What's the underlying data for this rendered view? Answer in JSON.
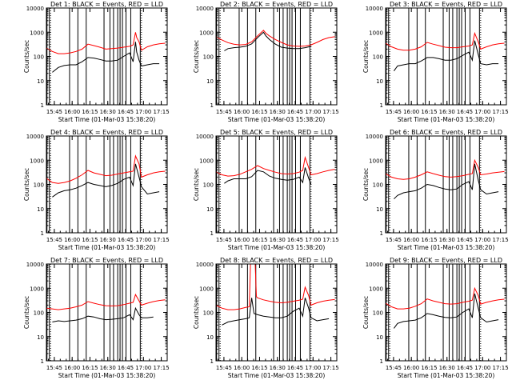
{
  "figure": {
    "x_tick_labels": [
      "15:45",
      "16:00",
      "16:15",
      "16:30",
      "16:45",
      "17:00",
      "17:15"
    ],
    "y_tick_labels": [
      "1",
      "10",
      "100",
      "1000",
      "10000"
    ],
    "ylabel": "Counts/sec",
    "xlabel": "Start Time (01-Mar-03 15:38:20)",
    "event_line_times_min": [
      -1.5,
      0.5,
      2.5,
      19.5,
      26.5,
      33.5,
      48.5,
      53.5,
      56.5,
      60.0,
      62.0,
      64.0,
      67.0,
      71.0,
      79.0
    ],
    "colors": {
      "events": "#000000",
      "lld": "#ff0000",
      "axes": "#000000",
      "background": "#ffffff"
    }
  },
  "chart_data": [
    {
      "type": "line",
      "title": "Det 1: BLACK = Events, RED = LLD",
      "xlim": [
        "15:38:20",
        "17:20"
      ],
      "ylim": [
        1,
        10000
      ],
      "yscale": "log",
      "series": [
        {
          "color": "#000000",
          "x_min": [
            5,
            10,
            15,
            20,
            25,
            30,
            35,
            40,
            45,
            50,
            55,
            60,
            65,
            70,
            73,
            75,
            76,
            78,
            80,
            85,
            90,
            95
          ],
          "y": [
            22,
            35,
            42,
            45,
            45,
            60,
            90,
            85,
            75,
            65,
            65,
            70,
            100,
            140,
            60,
            400,
            150,
            70,
            40,
            45,
            50,
            50
          ]
        },
        {
          "color": "#ff0000",
          "x_min": [
            0,
            5,
            10,
            15,
            20,
            25,
            30,
            35,
            40,
            45,
            50,
            55,
            60,
            65,
            70,
            73,
            75,
            76,
            78,
            80,
            85,
            90,
            95,
            100
          ],
          "y": [
            220,
            160,
            130,
            130,
            140,
            160,
            200,
            320,
            280,
            240,
            200,
            210,
            220,
            240,
            260,
            300,
            1000,
            600,
            400,
            180,
            250,
            300,
            330,
            350
          ]
        }
      ]
    },
    {
      "type": "line",
      "title": "Det 2: BLACK = Events, RED = LLD",
      "xlim": [
        "15:38:20",
        "17:20"
      ],
      "ylim": [
        1,
        10000
      ],
      "yscale": "log",
      "series": [
        {
          "color": "#000000",
          "x_min": [
            7,
            10,
            15,
            20,
            25,
            30,
            35,
            40,
            42,
            45,
            50,
            55,
            60,
            65,
            70,
            75,
            80
          ],
          "y": [
            170,
            210,
            230,
            240,
            260,
            330,
            600,
            1000,
            700,
            500,
            320,
            240,
            220,
            210,
            210,
            230,
            260
          ]
        },
        {
          "color": "#ff0000",
          "x_min": [
            0,
            5,
            10,
            15,
            20,
            25,
            30,
            35,
            40,
            42,
            45,
            50,
            55,
            60,
            65,
            70,
            75,
            80,
            85,
            90,
            95,
            100
          ],
          "y": [
            650,
            480,
            370,
            320,
            300,
            310,
            400,
            700,
            1200,
            900,
            700,
            500,
            380,
            300,
            270,
            260,
            270,
            300,
            380,
            500,
            600,
            650
          ]
        }
      ]
    },
    {
      "type": "line",
      "title": "Det 3: BLACK = Events, RED = LLD",
      "xlim": [
        "15:38:20",
        "17:20"
      ],
      "ylim": [
        1,
        10000
      ],
      "yscale": "log",
      "series": [
        {
          "color": "#000000",
          "x_min": [
            7,
            10,
            15,
            20,
            25,
            30,
            35,
            40,
            45,
            50,
            55,
            60,
            65,
            70,
            73,
            75,
            78,
            80,
            85,
            90,
            95
          ],
          "y": [
            25,
            40,
            45,
            50,
            50,
            65,
            90,
            90,
            80,
            70,
            70,
            80,
            110,
            150,
            70,
            450,
            120,
            50,
            45,
            50,
            50
          ]
        },
        {
          "color": "#ff0000",
          "x_min": [
            0,
            5,
            10,
            15,
            20,
            25,
            30,
            35,
            40,
            45,
            50,
            55,
            60,
            65,
            70,
            73,
            75,
            78,
            80,
            85,
            90,
            95,
            100
          ],
          "y": [
            350,
            250,
            200,
            180,
            180,
            200,
            250,
            380,
            320,
            280,
            240,
            230,
            230,
            250,
            270,
            300,
            900,
            400,
            200,
            250,
            300,
            330,
            350
          ]
        }
      ]
    },
    {
      "type": "line",
      "title": "Det 4: BLACK = Events, RED = LLD",
      "xlim": [
        "15:38:20",
        "17:20"
      ],
      "ylim": [
        1,
        10000
      ],
      "yscale": "log",
      "series": [
        {
          "color": "#000000",
          "x_min": [
            5,
            10,
            15,
            20,
            25,
            30,
            35,
            40,
            45,
            50,
            55,
            60,
            65,
            70,
            73,
            75,
            78,
            80,
            85,
            90,
            95
          ],
          "y": [
            30,
            45,
            55,
            60,
            70,
            90,
            120,
            100,
            90,
            80,
            90,
            110,
            160,
            200,
            90,
            700,
            200,
            80,
            40,
            45,
            50
          ]
        },
        {
          "color": "#ff0000",
          "x_min": [
            0,
            5,
            10,
            15,
            20,
            25,
            30,
            35,
            40,
            45,
            50,
            55,
            60,
            65,
            70,
            73,
            75,
            78,
            80,
            85,
            90,
            95,
            100
          ],
          "y": [
            180,
            120,
            110,
            120,
            140,
            180,
            250,
            380,
            300,
            260,
            230,
            240,
            270,
            300,
            330,
            350,
            1500,
            700,
            200,
            250,
            300,
            330,
            350
          ]
        }
      ]
    },
    {
      "type": "line",
      "title": "Det 5: BLACK = Events, RED = LLD",
      "xlim": [
        "15:38:20",
        "17:20"
      ],
      "ylim": [
        1,
        10000
      ],
      "yscale": "log",
      "series": [
        {
          "color": "#000000",
          "x_min": [
            7,
            10,
            15,
            20,
            25,
            30,
            35,
            40,
            45,
            50,
            55,
            60,
            65,
            70,
            73,
            75,
            78,
            80
          ],
          "y": [
            110,
            140,
            170,
            170,
            170,
            210,
            380,
            330,
            220,
            180,
            160,
            150,
            160,
            200,
            120,
            500,
            180,
            100
          ]
        },
        {
          "color": "#ff0000",
          "x_min": [
            0,
            5,
            10,
            15,
            20,
            25,
            30,
            35,
            40,
            45,
            50,
            55,
            60,
            65,
            70,
            73,
            75,
            78,
            80,
            85,
            90,
            95,
            100
          ],
          "y": [
            330,
            250,
            220,
            230,
            260,
            330,
            420,
            600,
            450,
            380,
            320,
            280,
            270,
            280,
            320,
            380,
            1300,
            500,
            250,
            280,
            330,
            380,
            420
          ]
        }
      ]
    },
    {
      "type": "line",
      "title": "Det 6: BLACK = Events, RED = LLD",
      "xlim": [
        "15:38:20",
        "17:20"
      ],
      "ylim": [
        1,
        10000
      ],
      "yscale": "log",
      "series": [
        {
          "color": "#000000",
          "x_min": [
            7,
            10,
            15,
            20,
            25,
            30,
            35,
            40,
            45,
            50,
            55,
            60,
            65,
            70,
            73,
            75,
            78,
            80,
            85,
            90,
            95
          ],
          "y": [
            25,
            35,
            45,
            50,
            55,
            70,
            100,
            90,
            75,
            65,
            60,
            65,
            100,
            130,
            60,
            700,
            150,
            60,
            40,
            45,
            50
          ]
        },
        {
          "color": "#ff0000",
          "x_min": [
            0,
            5,
            10,
            15,
            20,
            25,
            30,
            35,
            40,
            45,
            50,
            55,
            60,
            65,
            70,
            73,
            75,
            78,
            80,
            85,
            90,
            95,
            100
          ],
          "y": [
            280,
            200,
            170,
            160,
            170,
            200,
            250,
            330,
            280,
            240,
            210,
            200,
            210,
            230,
            260,
            280,
            1000,
            500,
            250,
            270,
            300,
            320,
            340
          ]
        }
      ]
    },
    {
      "type": "line",
      "title": "Det 7: BLACK = Events, RED = LLD",
      "xlim": [
        "15:38:20",
        "17:20"
      ],
      "ylim": [
        1,
        10000
      ],
      "yscale": "log",
      "series": [
        {
          "color": "#000000",
          "x_min": [
            5,
            10,
            15,
            20,
            25,
            30,
            35,
            40,
            45,
            50,
            55,
            60,
            65,
            70,
            73,
            75,
            78,
            80,
            85,
            90
          ],
          "y": [
            40,
            45,
            42,
            45,
            48,
            55,
            70,
            65,
            55,
            50,
            52,
            55,
            60,
            80,
            50,
            150,
            80,
            60,
            60,
            65
          ]
        },
        {
          "color": "#ff0000",
          "x_min": [
            0,
            5,
            10,
            15,
            20,
            25,
            30,
            35,
            40,
            45,
            50,
            55,
            60,
            65,
            70,
            73,
            75,
            78,
            80,
            85,
            90,
            95,
            100
          ],
          "y": [
            150,
            140,
            130,
            140,
            150,
            170,
            200,
            280,
            240,
            210,
            190,
            185,
            190,
            210,
            240,
            260,
            550,
            300,
            200,
            240,
            280,
            310,
            330
          ]
        }
      ]
    },
    {
      "type": "line",
      "title": "Det 8: BLACK = Events, RED = LLD",
      "xlim": [
        "15:38:20",
        "17:20"
      ],
      "ylim": [
        1,
        10000
      ],
      "yscale": "log",
      "series": [
        {
          "color": "#000000",
          "x_min": [
            5,
            10,
            15,
            20,
            25,
            28,
            30,
            32,
            35,
            40,
            45,
            50,
            55,
            60,
            65,
            70,
            73,
            75,
            78,
            80,
            85,
            90,
            95
          ],
          "y": [
            30,
            40,
            45,
            50,
            55,
            60,
            400,
            90,
            80,
            70,
            65,
            60,
            60,
            70,
            110,
            150,
            70,
            400,
            150,
            60,
            45,
            50,
            55
          ]
        },
        {
          "color": "#ff0000",
          "x_min": [
            0,
            5,
            10,
            15,
            20,
            25,
            28,
            29,
            33,
            34,
            35,
            40,
            45,
            50,
            55,
            60,
            65,
            70,
            73,
            75,
            78,
            80,
            85,
            90,
            95,
            100
          ],
          "y": [
            200,
            150,
            130,
            130,
            140,
            160,
            170,
            10000,
            10000,
            450,
            400,
            330,
            290,
            260,
            250,
            260,
            290,
            320,
            350,
            1100,
            500,
            200,
            250,
            290,
            320,
            340
          ]
        }
      ]
    },
    {
      "type": "line",
      "title": "Det 9: BLACK = Events, RED = LLD",
      "xlim": [
        "15:38:20",
        "17:20"
      ],
      "ylim": [
        1,
        10000
      ],
      "yscale": "log",
      "series": [
        {
          "color": "#000000",
          "x_min": [
            7,
            10,
            15,
            20,
            25,
            30,
            35,
            40,
            45,
            50,
            55,
            60,
            65,
            70,
            73,
            75,
            78,
            80,
            85,
            90,
            95
          ],
          "y": [
            22,
            35,
            42,
            45,
            48,
            60,
            90,
            80,
            70,
            62,
            60,
            65,
            100,
            140,
            60,
            600,
            150,
            60,
            40,
            45,
            50
          ]
        },
        {
          "color": "#ff0000",
          "x_min": [
            0,
            5,
            10,
            15,
            20,
            25,
            30,
            35,
            40,
            45,
            50,
            55,
            60,
            65,
            70,
            73,
            75,
            78,
            80,
            85,
            90,
            95,
            100
          ],
          "y": [
            240,
            170,
            140,
            140,
            150,
            180,
            230,
            360,
            300,
            260,
            230,
            220,
            230,
            260,
            290,
            320,
            1000,
            500,
            220,
            260,
            300,
            330,
            350
          ]
        }
      ]
    }
  ]
}
